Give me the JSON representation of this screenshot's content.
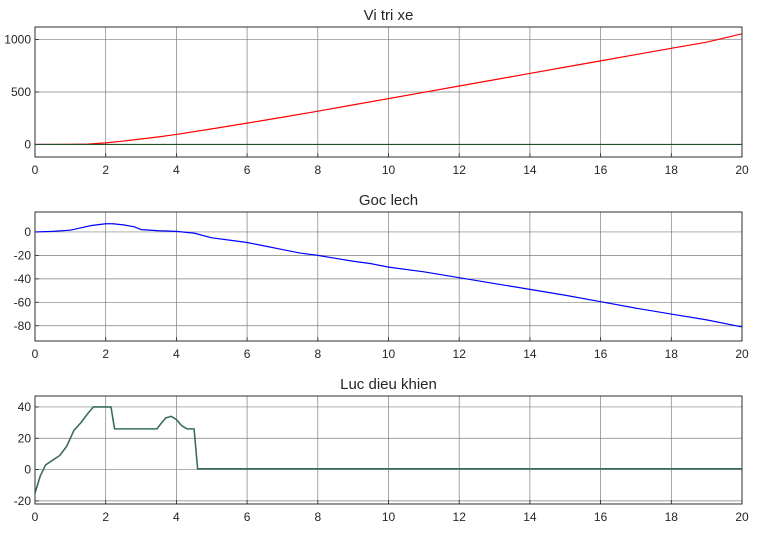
{
  "chart_data": [
    {
      "type": "line",
      "title": "Vi tri xe",
      "xlabel": "",
      "ylabel": "",
      "xlim": [
        0,
        20
      ],
      "ylim": [
        -120,
        1120
      ],
      "xticks": [
        0,
        2,
        4,
        6,
        8,
        10,
        12,
        14,
        16,
        18,
        20
      ],
      "yticks": [
        0,
        500,
        1000
      ],
      "grid": true,
      "series": [
        {
          "color": "#ff0000",
          "x": [
            0,
            1,
            1.5,
            2,
            2.5,
            3,
            3.5,
            4,
            5,
            6,
            7,
            8,
            9,
            10,
            11,
            12,
            13,
            14,
            15,
            16,
            17,
            18,
            19,
            20
          ],
          "y": [
            0,
            1,
            3,
            15,
            32,
            52,
            72,
            95,
            148,
            203,
            259,
            317,
            377,
            437,
            497,
            557,
            617,
            677,
            737,
            797,
            857,
            917,
            975,
            1055
          ]
        },
        {
          "color": "#1e4d2b",
          "x": [
            0,
            20
          ],
          "y": [
            0,
            0
          ]
        }
      ]
    },
    {
      "type": "line",
      "title": "Goc lech",
      "xlabel": "",
      "ylabel": "",
      "xlim": [
        0,
        20
      ],
      "ylim": [
        -93,
        17
      ],
      "xticks": [
        0,
        2,
        4,
        6,
        8,
        10,
        12,
        14,
        16,
        18,
        20
      ],
      "yticks": [
        0,
        -20,
        -40,
        -60,
        -80
      ],
      "grid": true,
      "series": [
        {
          "color": "#0000ff",
          "x": [
            0,
            0.5,
            1,
            1.3,
            1.6,
            2,
            2.2,
            2.5,
            2.8,
            3,
            3.5,
            4,
            4.5,
            5,
            5.5,
            6,
            6.5,
            7,
            7.5,
            8,
            8.5,
            9,
            9.5,
            10,
            11,
            12,
            13,
            14,
            15,
            16,
            17,
            18,
            19,
            20
          ],
          "y": [
            0,
            0.5,
            1.5,
            3.5,
            5.5,
            7,
            7,
            6,
            4.5,
            2,
            1,
            0.5,
            -1,
            -5,
            -7,
            -9,
            -12,
            -15,
            -18,
            -20,
            -22.5,
            -25,
            -27,
            -30,
            -34,
            -39,
            -44,
            -49,
            -54,
            -59.5,
            -65,
            -70,
            -75,
            -81
          ]
        }
      ]
    },
    {
      "type": "line",
      "title": "Luc dieu khien",
      "xlabel": "",
      "ylabel": "",
      "xlim": [
        0,
        20
      ],
      "ylim": [
        -22,
        47
      ],
      "xticks": [
        0,
        2,
        4,
        6,
        8,
        10,
        12,
        14,
        16,
        18,
        20
      ],
      "yticks": [
        40,
        20,
        0,
        -20
      ],
      "grid": true,
      "series": [
        {
          "color": "#3a6e5a",
          "x": [
            0,
            0.15,
            0.3,
            0.5,
            0.7,
            0.9,
            1.1,
            1.3,
            1.5,
            1.65,
            1.8,
            2.0,
            2.15,
            2.25,
            2.6,
            3.0,
            3.45,
            3.55,
            3.7,
            3.85,
            4.0,
            4.15,
            4.3,
            4.5,
            4.6,
            5,
            10,
            15,
            20
          ],
          "y": [
            -15,
            -4,
            3,
            6,
            9,
            15,
            25,
            30,
            36,
            40,
            40,
            40,
            40,
            26,
            26,
            26,
            26,
            29,
            33,
            34,
            32,
            28,
            26,
            26,
            0.5,
            0.5,
            0.5,
            0.5,
            0.5
          ]
        }
      ]
    }
  ]
}
